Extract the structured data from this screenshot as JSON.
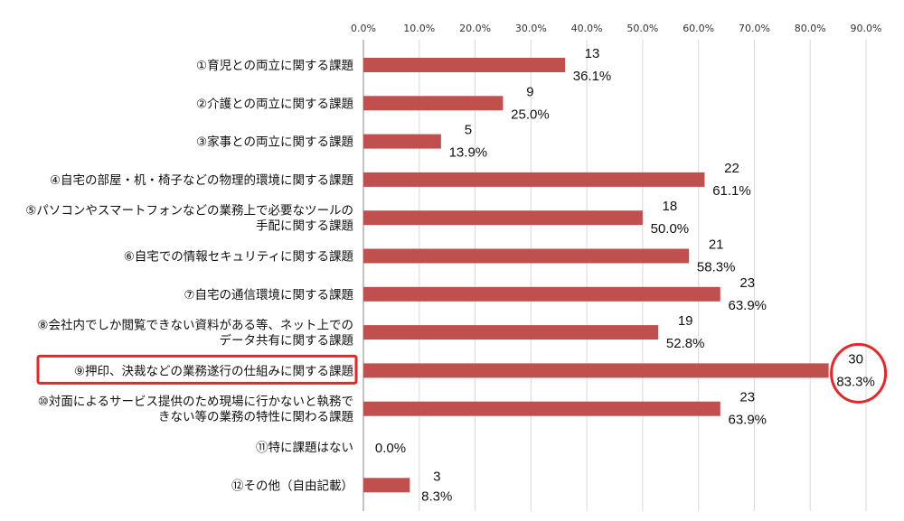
{
  "chart_data": {
    "type": "bar",
    "orientation": "horizontal",
    "x_ticks": [
      "0.0%",
      "10.0%",
      "20.0%",
      "30.0%",
      "40.0%",
      "50.0%",
      "60.0%",
      "70.0%",
      "80.0%",
      "90.0%"
    ],
    "xlim": [
      0,
      90
    ],
    "grid": true,
    "bar_color": "#c0504d",
    "highlight_color": "#e8262a",
    "highlight_index": 8,
    "categories": [
      [
        "①育児との両立に関する課題"
      ],
      [
        "②介護との両立に関する課題"
      ],
      [
        "③家事との両立に関する課題"
      ],
      [
        "④自宅の部屋・机・椅子などの物理的環境に関する課題"
      ],
      [
        "⑤パソコンやスマートフォンなどの業務上で必要なツールの",
        "手配に関する課題"
      ],
      [
        "⑥自宅での情報セキュリティに関する課題"
      ],
      [
        "⑦自宅の通信環境に関する課題"
      ],
      [
        "⑧会社内でしか閲覧できない資料がある等、ネット上での",
        "データ共有に関する課題"
      ],
      [
        "⑨押印、決裁などの業務遂行の仕組みに関する課題"
      ],
      [
        "⑩対面によるサービス提供のため現場に行かないと執務で",
        "きない等の業務の特性に関わる課題"
      ],
      [
        "⑪特に課題はない"
      ],
      [
        "⑫その他（自由記載）"
      ]
    ],
    "counts": [
      "13",
      "9",
      "5",
      "22",
      "18",
      "21",
      "23",
      "19",
      "30",
      "23",
      "",
      ""
    ],
    "counts_extra": [
      "",
      "",
      "",
      "",
      "",
      "",
      "",
      "",
      "",
      "",
      "",
      "3"
    ],
    "percent_labels": [
      "36.1%",
      "25.0%",
      "13.9%",
      "61.1%",
      "50.0%",
      "58.3%",
      "63.9%",
      "52.8%",
      "83.3%",
      "63.9%",
      "0.0%",
      "8.3%"
    ],
    "values": [
      36.1,
      25.0,
      13.9,
      61.1,
      50.0,
      58.3,
      63.9,
      52.8,
      83.3,
      63.9,
      0.0,
      8.3
    ]
  }
}
